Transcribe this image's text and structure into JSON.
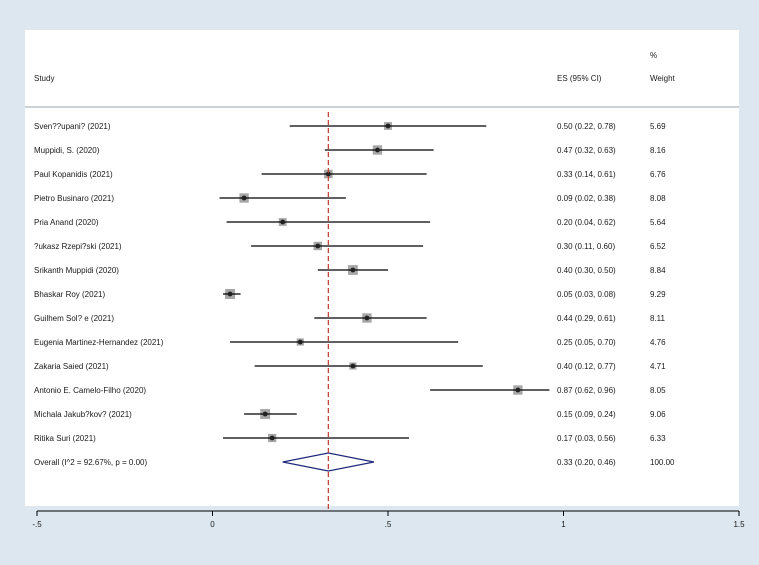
{
  "chart_data": {
    "type": "forest",
    "columns": {
      "study": "Study",
      "es": "ES (95% CI)",
      "weight_top": "%",
      "weight": "Weight"
    },
    "studies": [
      {
        "label": "Sven??upani? (2021)",
        "es": 0.5,
        "lo": 0.22,
        "hi": 0.78,
        "es_text": "0.50 (0.22, 0.78)",
        "weight": "5.69",
        "w": 5.69
      },
      {
        "label": "Muppidi, S. (2020)",
        "es": 0.47,
        "lo": 0.32,
        "hi": 0.63,
        "es_text": "0.47 (0.32, 0.63)",
        "weight": "8.16",
        "w": 8.16
      },
      {
        "label": "Paul Kopanidis (2021)",
        "es": 0.33,
        "lo": 0.14,
        "hi": 0.61,
        "es_text": "0.33 (0.14, 0.61)",
        "weight": "6.76",
        "w": 6.76
      },
      {
        "label": "Pietro Businaro (2021)",
        "es": 0.09,
        "lo": 0.02,
        "hi": 0.38,
        "es_text": "0.09 (0.02, 0.38)",
        "weight": "8.08",
        "w": 8.08
      },
      {
        "label": "Pria Anand (2020)",
        "es": 0.2,
        "lo": 0.04,
        "hi": 0.62,
        "es_text": "0.20 (0.04, 0.62)",
        "weight": "5.64",
        "w": 5.64
      },
      {
        "label": "?ukasz Rzepi?ski (2021)",
        "es": 0.3,
        "lo": 0.11,
        "hi": 0.6,
        "es_text": "0.30 (0.11, 0.60)",
        "weight": "6.52",
        "w": 6.52
      },
      {
        "label": "Srikanth Muppidi (2020)",
        "es": 0.4,
        "lo": 0.3,
        "hi": 0.5,
        "es_text": "0.40 (0.30, 0.50)",
        "weight": "8.84",
        "w": 8.84
      },
      {
        "label": "Bhaskar Roy (2021)",
        "es": 0.05,
        "lo": 0.03,
        "hi": 0.08,
        "es_text": "0.05 (0.03, 0.08)",
        "weight": "9.29",
        "w": 9.29
      },
      {
        "label": "Guilhem Sol? e (2021)",
        "es": 0.44,
        "lo": 0.29,
        "hi": 0.61,
        "es_text": "0.44 (0.29, 0.61)",
        "weight": "8.11",
        "w": 8.11
      },
      {
        "label": "Eugenia Martinez-Hernandez (2021)",
        "es": 0.25,
        "lo": 0.05,
        "hi": 0.7,
        "es_text": "0.25 (0.05, 0.70)",
        "weight": "4.76",
        "w": 4.76
      },
      {
        "label": "Zakaria Saied (2021)",
        "es": 0.4,
        "lo": 0.12,
        "hi": 0.77,
        "es_text": "0.40 (0.12, 0.77)",
        "weight": "4.71",
        "w": 4.71
      },
      {
        "label": "Antonio E. Camelo-Filho (2020)",
        "es": 0.87,
        "lo": 0.62,
        "hi": 0.96,
        "es_text": "0.87 (0.62, 0.96)",
        "weight": "8.05",
        "w": 8.05
      },
      {
        "label": "Michala Jakub?kov? (2021)",
        "es": 0.15,
        "lo": 0.09,
        "hi": 0.24,
        "es_text": "0.15 (0.09, 0.24)",
        "weight": "9.06",
        "w": 9.06
      },
      {
        "label": "Ritika Suri (2021)",
        "es": 0.17,
        "lo": 0.03,
        "hi": 0.56,
        "es_text": "0.17 (0.03, 0.56)",
        "weight": "6.33",
        "w": 6.33
      }
    ],
    "overall": {
      "label": "Overall  (I^2 = 92.67%, p = 0.00)",
      "es": 0.33,
      "lo": 0.2,
      "hi": 0.46,
      "es_text": "0.33 (0.20, 0.46)",
      "weight": "100.00"
    },
    "xlim": [
      -0.5,
      1.5
    ],
    "xticks": [
      -0.5,
      0,
      0.5,
      1,
      1.5
    ],
    "xtick_labels": [
      "-.5",
      "0",
      ".5",
      "1",
      "1.5"
    ],
    "reference_line": 0.33,
    "colors": {
      "background": "#dde7ef",
      "panel": "#ffffff",
      "ci_line": "#000000",
      "box": "#a6a6a6",
      "point": "#222222",
      "diamond": "#1f2a7a",
      "ref_line": "#c0392b",
      "rule": "#9aa3ab"
    }
  }
}
